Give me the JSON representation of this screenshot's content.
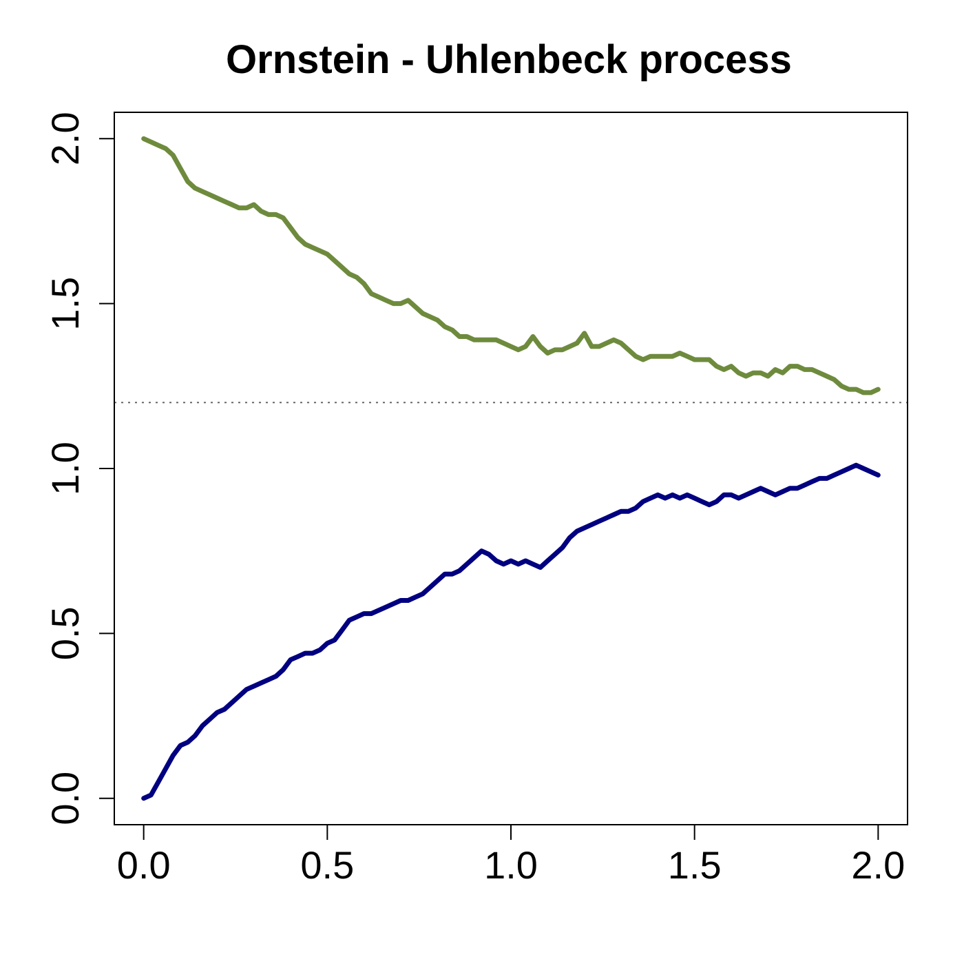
{
  "chart_data": {
    "type": "line",
    "title": "Ornstein - Uhlenbeck process",
    "xlabel": "",
    "ylabel": "",
    "xlim": [
      -0.08,
      2.08
    ],
    "ylim": [
      -0.08,
      2.08
    ],
    "x_ticks": [
      0.0,
      0.5,
      1.0,
      1.5,
      2.0
    ],
    "x_tick_labels": [
      "0.0",
      "0.5",
      "1.0",
      "1.5",
      "2.0"
    ],
    "y_ticks": [
      0.0,
      0.5,
      1.0,
      1.5,
      2.0
    ],
    "y_tick_labels": [
      "0.0",
      "0.5",
      "1.0",
      "1.5",
      "2.0"
    ],
    "grid": false,
    "legend": "none",
    "reference_line": {
      "y": 1.2,
      "style": "dotted",
      "color": "#666666"
    },
    "series": [
      {
        "color": "#6e8b3d",
        "x": [
          0.0,
          0.02,
          0.04,
          0.06,
          0.08,
          0.1,
          0.12,
          0.14,
          0.16,
          0.18,
          0.2,
          0.22,
          0.24,
          0.26,
          0.28,
          0.3,
          0.32,
          0.34,
          0.36,
          0.38,
          0.4,
          0.42,
          0.44,
          0.46,
          0.48,
          0.5,
          0.52,
          0.54,
          0.56,
          0.58,
          0.6,
          0.62,
          0.64,
          0.66,
          0.68,
          0.7,
          0.72,
          0.74,
          0.76,
          0.78,
          0.8,
          0.82,
          0.84,
          0.86,
          0.88,
          0.9,
          0.92,
          0.94,
          0.96,
          0.98,
          1.0,
          1.02,
          1.04,
          1.06,
          1.08,
          1.1,
          1.12,
          1.14,
          1.16,
          1.18,
          1.2,
          1.22,
          1.24,
          1.26,
          1.28,
          1.3,
          1.32,
          1.34,
          1.36,
          1.38,
          1.4,
          1.42,
          1.44,
          1.46,
          1.48,
          1.5,
          1.52,
          1.54,
          1.56,
          1.58,
          1.6,
          1.62,
          1.64,
          1.66,
          1.68,
          1.7,
          1.72,
          1.74,
          1.76,
          1.78,
          1.8,
          1.82,
          1.84,
          1.86,
          1.88,
          1.9,
          1.92,
          1.94,
          1.96,
          1.98,
          2.0
        ],
        "values": [
          2.0,
          1.99,
          1.98,
          1.97,
          1.95,
          1.91,
          1.87,
          1.85,
          1.84,
          1.83,
          1.82,
          1.81,
          1.8,
          1.79,
          1.79,
          1.8,
          1.78,
          1.77,
          1.77,
          1.76,
          1.73,
          1.7,
          1.68,
          1.67,
          1.66,
          1.65,
          1.63,
          1.61,
          1.59,
          1.58,
          1.56,
          1.53,
          1.52,
          1.51,
          1.5,
          1.5,
          1.51,
          1.49,
          1.47,
          1.46,
          1.45,
          1.43,
          1.42,
          1.4,
          1.4,
          1.39,
          1.39,
          1.39,
          1.39,
          1.38,
          1.37,
          1.36,
          1.37,
          1.4,
          1.37,
          1.35,
          1.36,
          1.36,
          1.37,
          1.38,
          1.41,
          1.37,
          1.37,
          1.38,
          1.39,
          1.38,
          1.36,
          1.34,
          1.33,
          1.34,
          1.34,
          1.34,
          1.34,
          1.35,
          1.34,
          1.33,
          1.33,
          1.33,
          1.31,
          1.3,
          1.31,
          1.29,
          1.28,
          1.29,
          1.29,
          1.28,
          1.3,
          1.29,
          1.31,
          1.31,
          1.3,
          1.3,
          1.29,
          1.28,
          1.27,
          1.25,
          1.24,
          1.24,
          1.23,
          1.23,
          1.24
        ]
      },
      {
        "color": "#000080",
        "x": [
          0.0,
          0.02,
          0.04,
          0.06,
          0.08,
          0.1,
          0.12,
          0.14,
          0.16,
          0.18,
          0.2,
          0.22,
          0.24,
          0.26,
          0.28,
          0.3,
          0.32,
          0.34,
          0.36,
          0.38,
          0.4,
          0.42,
          0.44,
          0.46,
          0.48,
          0.5,
          0.52,
          0.54,
          0.56,
          0.58,
          0.6,
          0.62,
          0.64,
          0.66,
          0.68,
          0.7,
          0.72,
          0.74,
          0.76,
          0.78,
          0.8,
          0.82,
          0.84,
          0.86,
          0.88,
          0.9,
          0.92,
          0.94,
          0.96,
          0.98,
          1.0,
          1.02,
          1.04,
          1.06,
          1.08,
          1.1,
          1.12,
          1.14,
          1.16,
          1.18,
          1.2,
          1.22,
          1.24,
          1.26,
          1.28,
          1.3,
          1.32,
          1.34,
          1.36,
          1.38,
          1.4,
          1.42,
          1.44,
          1.46,
          1.48,
          1.5,
          1.52,
          1.54,
          1.56,
          1.58,
          1.6,
          1.62,
          1.64,
          1.66,
          1.68,
          1.7,
          1.72,
          1.74,
          1.76,
          1.78,
          1.8,
          1.82,
          1.84,
          1.86,
          1.88,
          1.9,
          1.92,
          1.94,
          1.96,
          1.98,
          2.0
        ],
        "values": [
          0.0,
          0.01,
          0.05,
          0.09,
          0.13,
          0.16,
          0.17,
          0.19,
          0.22,
          0.24,
          0.26,
          0.27,
          0.29,
          0.31,
          0.33,
          0.34,
          0.35,
          0.36,
          0.37,
          0.39,
          0.42,
          0.43,
          0.44,
          0.44,
          0.45,
          0.47,
          0.48,
          0.51,
          0.54,
          0.55,
          0.56,
          0.56,
          0.57,
          0.58,
          0.59,
          0.6,
          0.6,
          0.61,
          0.62,
          0.64,
          0.66,
          0.68,
          0.68,
          0.69,
          0.71,
          0.73,
          0.75,
          0.74,
          0.72,
          0.71,
          0.72,
          0.71,
          0.72,
          0.71,
          0.7,
          0.72,
          0.74,
          0.76,
          0.79,
          0.81,
          0.82,
          0.83,
          0.84,
          0.85,
          0.86,
          0.87,
          0.87,
          0.88,
          0.9,
          0.91,
          0.92,
          0.91,
          0.92,
          0.91,
          0.92,
          0.91,
          0.9,
          0.89,
          0.9,
          0.92,
          0.92,
          0.91,
          0.92,
          0.93,
          0.94,
          0.93,
          0.92,
          0.93,
          0.94,
          0.94,
          0.95,
          0.96,
          0.97,
          0.97,
          0.98,
          0.99,
          1.0,
          1.01,
          1.0,
          0.99,
          0.98
        ]
      }
    ]
  }
}
